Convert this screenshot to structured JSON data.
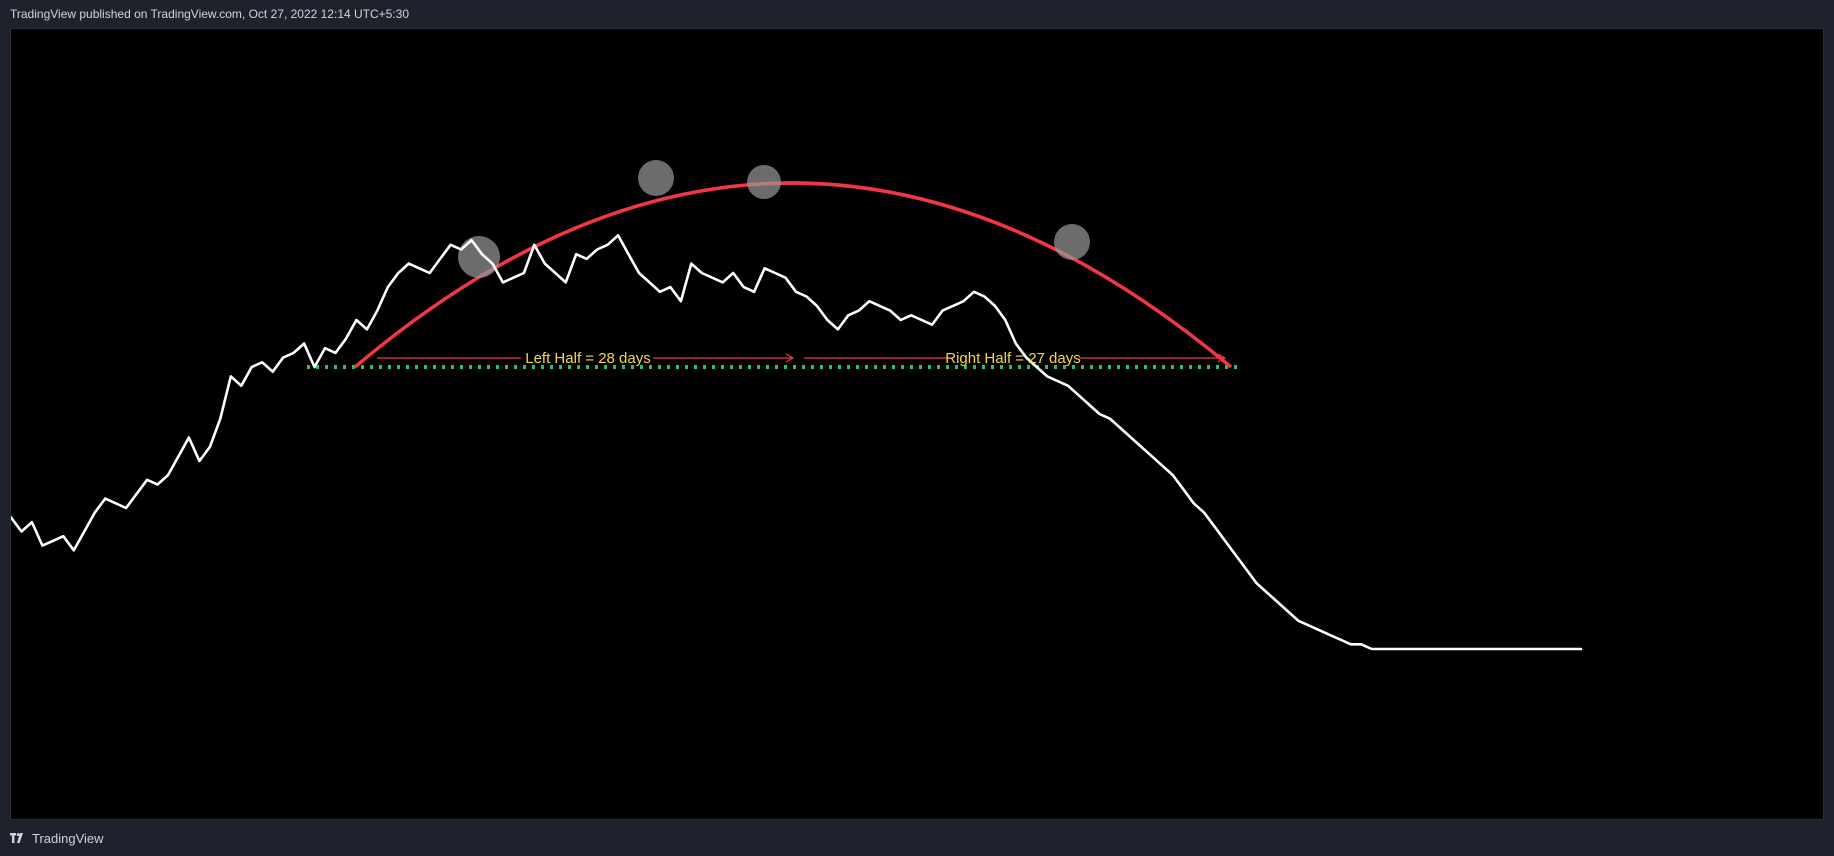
{
  "header": {
    "published_text": "TradingView published on TradingView.com, Oct 27, 2022 12:14 UTC+5:30"
  },
  "footer": {
    "brand": "TradingView",
    "logo_icon": "tradingview-logo-icon"
  },
  "colors": {
    "background": "#000000",
    "frame": "#1e222d",
    "price_line": "#ffffff",
    "arc": "#f23645",
    "neckline": "#22c55e",
    "arrow": "#f23645",
    "annotation_text": "#f5d94a",
    "peak_marker": "#9a9a9a"
  },
  "chart_data": {
    "type": "line",
    "title": "",
    "xlabel": "",
    "ylabel": "",
    "x_axis": "bar index",
    "xlim": [
      0,
      300
    ],
    "ylim": [
      0,
      100
    ],
    "grid": false,
    "legend": "none",
    "series": [
      {
        "name": "",
        "x": [
          0,
          2,
          4,
          6,
          8,
          10,
          12,
          14,
          16,
          18,
          20,
          22,
          24,
          26,
          28,
          30,
          32,
          34,
          36,
          38,
          40,
          42,
          44,
          46,
          48,
          50,
          52,
          54,
          56,
          58,
          60,
          62,
          64,
          66,
          68,
          70,
          72,
          74,
          76,
          78,
          80,
          82,
          84,
          86,
          88,
          90,
          92,
          94,
          96,
          98,
          100,
          102,
          104,
          106,
          108,
          110,
          112,
          114,
          116,
          118,
          120,
          122,
          124,
          126,
          128,
          130,
          132,
          134,
          136,
          138,
          140,
          142,
          144,
          146,
          148,
          150,
          152,
          154,
          156,
          158,
          160,
          162,
          164,
          166,
          168,
          170,
          172,
          174,
          176,
          178,
          180,
          182,
          184,
          186,
          188,
          190,
          192,
          194,
          196,
          198,
          200,
          202,
          204,
          206,
          208,
          210,
          212,
          214,
          216,
          218,
          220,
          222,
          224,
          226,
          228,
          230,
          232,
          234,
          236,
          238,
          240,
          242,
          244,
          246,
          248,
          250,
          252,
          254,
          256,
          258,
          260,
          262,
          264,
          266,
          268,
          270,
          272,
          274,
          276,
          278,
          280,
          282,
          284,
          286,
          288,
          290,
          292,
          294,
          296,
          298,
          300
        ],
        "y": [
          28,
          25,
          27,
          22,
          23,
          24,
          21,
          25,
          29,
          32,
          31,
          30,
          33,
          36,
          35,
          37,
          41,
          45,
          40,
          43,
          49,
          58,
          56,
          60,
          61,
          59,
          62,
          63,
          65,
          60,
          64,
          63,
          66,
          70,
          68,
          72,
          77,
          80,
          82,
          81,
          80,
          83,
          86,
          85,
          87,
          84,
          82,
          78,
          79,
          80,
          86,
          82,
          80,
          78,
          84,
          83,
          85,
          86,
          88,
          84,
          80,
          78,
          76,
          77,
          74,
          82,
          80,
          79,
          78,
          80,
          77,
          76,
          81,
          80,
          79,
          76,
          75,
          73,
          70,
          68,
          71,
          72,
          74,
          73,
          72,
          70,
          71,
          70,
          69,
          72,
          73,
          74,
          76,
          75,
          73,
          70,
          65,
          62,
          60,
          58,
          57,
          56,
          54,
          52,
          50,
          49,
          47,
          45,
          43,
          41,
          39,
          37,
          34,
          31,
          29,
          26,
          23,
          20,
          17,
          14,
          12,
          10,
          8,
          6,
          5,
          4,
          3,
          2,
          1,
          1,
          0,
          0,
          0,
          0,
          0,
          0,
          0,
          0,
          0,
          0,
          0,
          0,
          0,
          0,
          0,
          0,
          0,
          0,
          0,
          0,
          0
        ]
      }
    ],
    "annotations": [
      {
        "type": "label",
        "text": "Left Half = 28 days"
      },
      {
        "type": "label",
        "text": "Right Half = 27 days"
      }
    ]
  }
}
